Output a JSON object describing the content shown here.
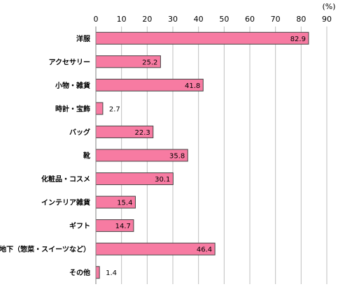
{
  "chart_data": {
    "type": "bar",
    "orientation": "horizontal",
    "unit": "(%)",
    "xlim": [
      0,
      90
    ],
    "ticks": [
      "0",
      "10",
      "20",
      "30",
      "40",
      "50",
      "60",
      "70",
      "80",
      "90"
    ],
    "categories": [
      "洋服",
      "アクセサリー",
      "小物・雑貨",
      "時計・宝飾",
      "バッグ",
      "靴",
      "化粧品・コスメ",
      "インテリア雑貨",
      "ギフト",
      "デパ地下（惣菜・スイーツなど）",
      "その他"
    ],
    "values": [
      82.9,
      25.2,
      41.8,
      2.7,
      22.3,
      35.8,
      30.1,
      15.4,
      14.7,
      46.4,
      1.4
    ],
    "value_labels": [
      "82.9",
      "25.2",
      "41.8",
      "2.7",
      "22.3",
      "35.8",
      "30.1",
      "15.4",
      "14.7",
      "46.4",
      "1.4"
    ],
    "grid": true,
    "colors": {
      "bar_fill": "#f77ba2",
      "bar_stroke": "#444444",
      "grid": "#bfbfbf",
      "axis": "#808080"
    }
  }
}
